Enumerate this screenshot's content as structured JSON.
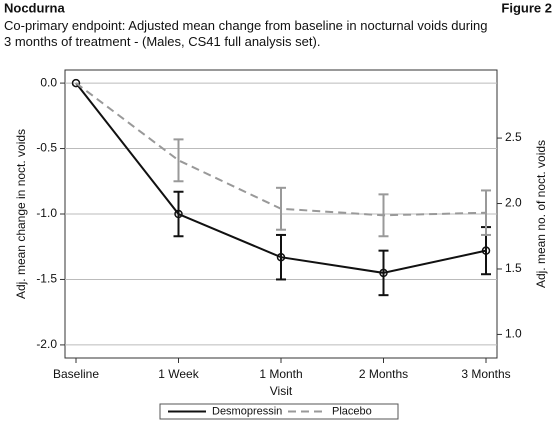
{
  "header": {
    "brand": "Nocdurna",
    "figure": "Figure 2"
  },
  "chart_data": {
    "type": "line",
    "title": "Co-primary endpoint: Adjusted mean change from baseline in nocturnal voids during 3 months of treatment - (Males, CS41 full analysis set).",
    "x_label": "Visit",
    "y_label": "Adj. mean change in noct. voids",
    "y2_label": "Adj. mean no. of noct. voids",
    "categories": [
      "Baseline",
      "1 Week",
      "1 Month",
      "2 Months",
      "3 Months"
    ],
    "series": [
      {
        "name": "Desmopressin",
        "color": "#111111",
        "line_style": "solid",
        "markers": true,
        "values": [
          0,
          -1.0,
          -1.33,
          -1.45,
          -1.28
        ],
        "errors": [
          null,
          0.17,
          0.17,
          0.17,
          0.18
        ]
      },
      {
        "name": "Placebo",
        "color": "#999999",
        "line_style": "dashed",
        "markers": false,
        "values": [
          0,
          -0.59,
          -0.96,
          -1.01,
          -0.99
        ],
        "errors": [
          null,
          0.16,
          0.16,
          0.16,
          0.17
        ]
      }
    ],
    "ylim": [
      -2.1,
      0.1
    ],
    "yticks": [
      {
        "value": 0,
        "label": "0.0"
      },
      {
        "value": -0.5,
        "label": "-0.5"
      },
      {
        "value": -1,
        "label": "-1.0"
      },
      {
        "value": -1.5,
        "label": "-1.5"
      },
      {
        "value": -2,
        "label": "-2.0"
      }
    ],
    "y2lim": [
      0.82,
      3.02
    ],
    "y2ticks": [
      {
        "value": 1,
        "label": "1.0"
      },
      1.5,
      {
        "value": 2,
        "label": "2.0"
      },
      2.5
    ],
    "grid": true,
    "legend": "bottom"
  }
}
